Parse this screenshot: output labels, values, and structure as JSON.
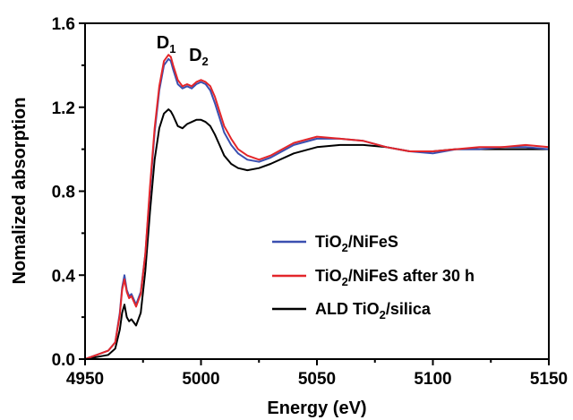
{
  "chart_data": {
    "type": "line",
    "xlabel": "Energy (eV)",
    "ylabel": "Nomalized absorption",
    "xlim": [
      4950,
      5150
    ],
    "ylim": [
      0.0,
      1.6
    ],
    "x_ticks": [
      "4950",
      "5000",
      "5050",
      "5100",
      "5150"
    ],
    "y_ticks": [
      "0.0",
      "0.4",
      "0.8",
      "1.2",
      "1.6"
    ],
    "grid": false,
    "legend_position": "right-middle",
    "annotations": [
      {
        "main": "D",
        "sub": "1",
        "x": 4985,
        "y": 1.48
      },
      {
        "main": "D",
        "sub": "2",
        "x": 4999,
        "y": 1.42
      }
    ],
    "series": [
      {
        "name_parts": [
          "TiO",
          "2",
          "/NiFeS"
        ],
        "color": "#3a4fb0",
        "x": [
          4950,
          4955,
          4960,
          4963,
          4965,
          4966,
          4967,
          4968,
          4969,
          4970,
          4972,
          4974,
          4976,
          4978,
          4980,
          4982,
          4984,
          4986,
          4987,
          4988,
          4990,
          4992,
          4994,
          4996,
          4998,
          5000,
          5002,
          5004,
          5006,
          5008,
          5010,
          5013,
          5016,
          5020,
          5025,
          5030,
          5040,
          5050,
          5060,
          5070,
          5080,
          5090,
          5100,
          5110,
          5120,
          5130,
          5140,
          5150
        ],
        "y": [
          0.0,
          0.02,
          0.04,
          0.08,
          0.22,
          0.34,
          0.4,
          0.33,
          0.3,
          0.31,
          0.26,
          0.32,
          0.5,
          0.8,
          1.08,
          1.28,
          1.4,
          1.43,
          1.42,
          1.38,
          1.31,
          1.29,
          1.3,
          1.29,
          1.31,
          1.32,
          1.31,
          1.28,
          1.22,
          1.15,
          1.08,
          1.02,
          0.98,
          0.95,
          0.94,
          0.96,
          1.02,
          1.05,
          1.05,
          1.04,
          1.01,
          0.99,
          0.98,
          1.0,
          1.0,
          1.01,
          1.01,
          1.0
        ]
      },
      {
        "name_parts": [
          "TiO",
          "2",
          "/NiFeS after 30 h"
        ],
        "color": "#e3262a",
        "x": [
          4950,
          4955,
          4960,
          4963,
          4965,
          4966,
          4967,
          4968,
          4969,
          4970,
          4972,
          4974,
          4976,
          4978,
          4980,
          4982,
          4984,
          4986,
          4987,
          4988,
          4990,
          4992,
          4994,
          4996,
          4998,
          5000,
          5002,
          5004,
          5006,
          5008,
          5010,
          5013,
          5016,
          5020,
          5025,
          5030,
          5040,
          5050,
          5060,
          5070,
          5080,
          5090,
          5100,
          5110,
          5120,
          5130,
          5140,
          5150
        ],
        "y": [
          0.0,
          0.02,
          0.04,
          0.08,
          0.21,
          0.33,
          0.38,
          0.32,
          0.29,
          0.3,
          0.25,
          0.31,
          0.5,
          0.82,
          1.1,
          1.3,
          1.42,
          1.45,
          1.44,
          1.4,
          1.33,
          1.3,
          1.31,
          1.3,
          1.32,
          1.33,
          1.32,
          1.3,
          1.25,
          1.18,
          1.11,
          1.05,
          1.0,
          0.97,
          0.95,
          0.97,
          1.03,
          1.06,
          1.05,
          1.04,
          1.01,
          0.99,
          0.99,
          1.0,
          1.01,
          1.01,
          1.02,
          1.01
        ]
      },
      {
        "name_parts": [
          "ALD TiO",
          "2",
          "/silica"
        ],
        "color": "#000000",
        "x": [
          4950,
          4955,
          4960,
          4963,
          4965,
          4966,
          4967,
          4968,
          4969,
          4970,
          4972,
          4974,
          4976,
          4978,
          4980,
          4982,
          4984,
          4986,
          4987,
          4988,
          4990,
          4992,
          4994,
          4996,
          4998,
          5000,
          5002,
          5004,
          5006,
          5008,
          5010,
          5013,
          5016,
          5020,
          5025,
          5030,
          5040,
          5050,
          5060,
          5070,
          5080,
          5090,
          5100,
          5110,
          5120,
          5130,
          5140,
          5150
        ],
        "y": [
          0.0,
          0.01,
          0.02,
          0.05,
          0.14,
          0.22,
          0.26,
          0.2,
          0.18,
          0.19,
          0.16,
          0.22,
          0.42,
          0.7,
          0.95,
          1.1,
          1.17,
          1.19,
          1.18,
          1.16,
          1.11,
          1.1,
          1.12,
          1.13,
          1.14,
          1.14,
          1.13,
          1.11,
          1.07,
          1.02,
          0.97,
          0.93,
          0.91,
          0.9,
          0.91,
          0.93,
          0.98,
          1.01,
          1.02,
          1.02,
          1.01,
          0.99,
          0.99,
          1.0,
          1.0,
          1.0,
          1.0,
          1.0
        ]
      }
    ]
  }
}
